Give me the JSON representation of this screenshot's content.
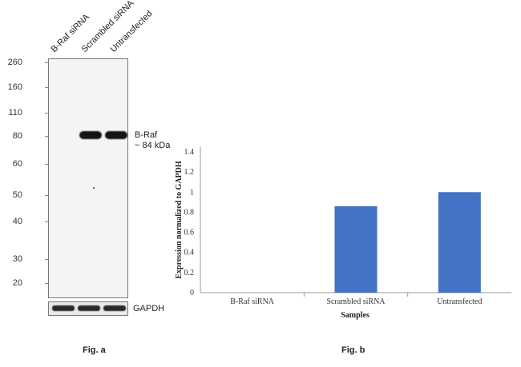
{
  "panel_a": {
    "lanes": [
      "B-Raf siRNA",
      "Scrambled siRNA",
      "Untransfected"
    ],
    "markers": [
      "260",
      "160",
      "110",
      "80",
      "60",
      "50",
      "40",
      "30",
      "20"
    ],
    "band_label_1": "B-Raf",
    "band_label_2": "~ 84 kDa",
    "loading_control": "GAPDH",
    "caption": "Fig. a"
  },
  "panel_b": {
    "caption": "Fig. b"
  },
  "chart_data": {
    "type": "bar",
    "categories": [
      "B-Raf siRNA",
      "Scrambled siRNA",
      "Untransfected"
    ],
    "values": [
      0,
      0.86,
      1.0
    ],
    "title": "",
    "xlabel": "Samples",
    "ylabel": "Expression normalized to GAPDH",
    "ylim": [
      0,
      1.4
    ],
    "yticks": [
      "0",
      "0.2",
      "0.4",
      "0.6",
      "0.8",
      "1",
      "1.2",
      "1.4"
    ],
    "bar_color": "#4472c4",
    "grid": false
  }
}
